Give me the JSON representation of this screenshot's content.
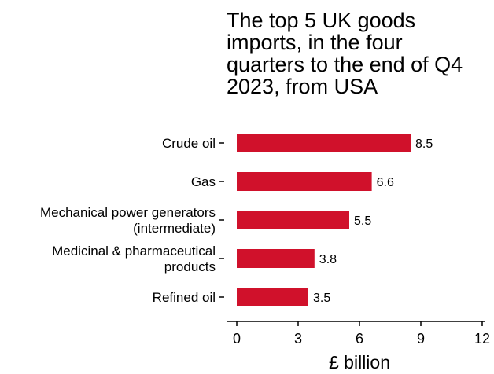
{
  "chart_data": {
    "type": "bar",
    "orientation": "horizontal",
    "title_lines": [
      "The top 5 UK goods",
      "imports, in the four",
      "quarters to the end of Q4",
      "2023, from USA"
    ],
    "categories": [
      [
        "Crude oil"
      ],
      [
        "Gas"
      ],
      [
        "Mechanical power generators",
        "(intermediate)"
      ],
      [
        "Medicinal & pharmaceutical",
        "products"
      ],
      [
        "Refined oil"
      ]
    ],
    "values": [
      8.5,
      6.6,
      5.5,
      3.8,
      3.5
    ],
    "value_labels": [
      "8.5",
      "6.6",
      "5.5",
      "3.8",
      "3.5"
    ],
    "xlabel": "£ billion",
    "ylabel": "",
    "xlim": [
      0,
      12
    ],
    "xticks": [
      0,
      3,
      6,
      9,
      12
    ],
    "bar_color": "#d0112b",
    "grid": false,
    "legend": "none"
  }
}
